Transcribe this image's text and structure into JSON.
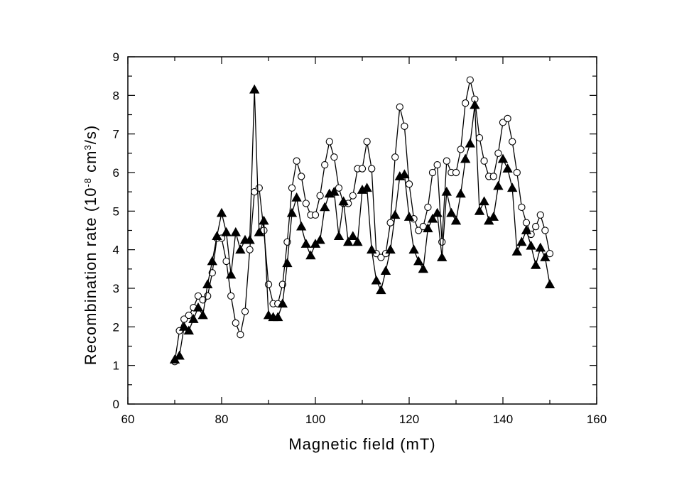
{
  "chart_data": {
    "type": "line",
    "xlabel": "Magnetic field (mT)",
    "ylabel": {
      "prefix": "Recombination rate (10",
      "exp1": "-8",
      "mid": " cm",
      "exp2": "3",
      "suffix": "/s)"
    },
    "xlim": [
      60,
      160
    ],
    "ylim": [
      0,
      9
    ],
    "x_ticks": [
      60,
      80,
      100,
      120,
      140,
      160
    ],
    "y_ticks": [
      0,
      1,
      2,
      3,
      4,
      5,
      6,
      7,
      8,
      9
    ],
    "grid": false,
    "legend": "none",
    "series": [
      {
        "marker": "open-circle",
        "color": "#000000",
        "x": [
          70,
          71,
          72,
          73,
          74,
          75,
          76,
          77,
          78,
          79,
          80,
          81,
          82,
          83,
          84,
          85,
          86,
          87,
          88,
          89,
          90,
          91,
          92,
          93,
          94,
          95,
          96,
          97,
          98,
          99,
          100,
          101,
          102,
          103,
          104,
          105,
          106,
          107,
          108,
          109,
          110,
          111,
          112,
          113,
          114,
          115,
          116,
          117,
          118,
          119,
          120,
          121,
          122,
          123,
          124,
          125,
          126,
          127,
          128,
          129,
          130,
          131,
          132,
          133,
          134,
          135,
          136,
          137,
          138,
          139,
          140,
          141,
          142,
          143,
          144,
          145,
          146,
          147,
          148,
          149,
          150
        ],
        "y": [
          1.1,
          1.9,
          2.2,
          2.3,
          2.5,
          2.8,
          2.7,
          2.8,
          3.4,
          4.3,
          4.3,
          3.7,
          2.8,
          2.1,
          1.8,
          2.4,
          4.0,
          5.5,
          5.6,
          4.5,
          3.1,
          2.6,
          2.6,
          3.1,
          4.2,
          5.6,
          6.3,
          5.9,
          5.2,
          4.9,
          4.9,
          5.4,
          6.2,
          6.8,
          6.4,
          5.6,
          5.2,
          5.2,
          5.4,
          6.1,
          6.1,
          6.8,
          6.1,
          3.9,
          3.8,
          3.9,
          4.7,
          6.4,
          7.7,
          7.2,
          5.7,
          4.8,
          4.5,
          4.6,
          5.1,
          6.0,
          6.2,
          4.2,
          6.3,
          6.0,
          6.0,
          6.6,
          7.8,
          8.4,
          7.9,
          6.9,
          6.3,
          5.9,
          5.9,
          6.5,
          7.3,
          7.4,
          6.8,
          6.0,
          5.1,
          4.7,
          4.4,
          4.6,
          4.9,
          4.5,
          3.9
        ]
      },
      {
        "marker": "filled-triangle",
        "color": "#000000",
        "x": [
          70,
          71,
          72,
          73,
          74,
          75,
          76,
          77,
          78,
          79,
          80,
          81,
          82,
          83,
          84,
          85,
          86,
          87,
          88,
          89,
          90,
          91,
          92,
          93,
          94,
          95,
          96,
          97,
          98,
          99,
          100,
          101,
          102,
          103,
          104,
          105,
          106,
          107,
          108,
          109,
          110,
          111,
          112,
          113,
          114,
          115,
          116,
          117,
          118,
          119,
          120,
          121,
          122,
          123,
          124,
          125,
          126,
          127,
          128,
          129,
          130,
          131,
          132,
          133,
          134,
          135,
          136,
          137,
          138,
          139,
          140,
          141,
          142,
          143,
          144,
          145,
          146,
          147,
          148,
          149,
          150
        ],
        "y": [
          1.15,
          1.25,
          2.0,
          1.9,
          2.2,
          2.5,
          2.3,
          3.1,
          3.7,
          4.35,
          4.95,
          4.45,
          3.35,
          4.45,
          4.0,
          4.25,
          4.25,
          8.15,
          4.45,
          4.75,
          2.3,
          2.25,
          2.25,
          2.6,
          3.65,
          4.95,
          5.35,
          4.6,
          4.15,
          3.85,
          4.15,
          4.25,
          5.1,
          5.45,
          5.5,
          4.35,
          5.25,
          4.2,
          4.35,
          4.2,
          5.55,
          5.6,
          4.0,
          3.2,
          2.95,
          3.45,
          4.0,
          4.9,
          5.9,
          5.95,
          4.85,
          4.0,
          3.7,
          3.5,
          4.55,
          4.8,
          4.95,
          3.8,
          5.5,
          4.95,
          4.75,
          5.45,
          6.35,
          6.75,
          7.75,
          5.0,
          5.25,
          4.75,
          4.85,
          5.65,
          6.35,
          6.1,
          5.6,
          3.95,
          4.2,
          4.5,
          4.1,
          3.6,
          4.05,
          3.8,
          3.1
        ]
      }
    ]
  }
}
